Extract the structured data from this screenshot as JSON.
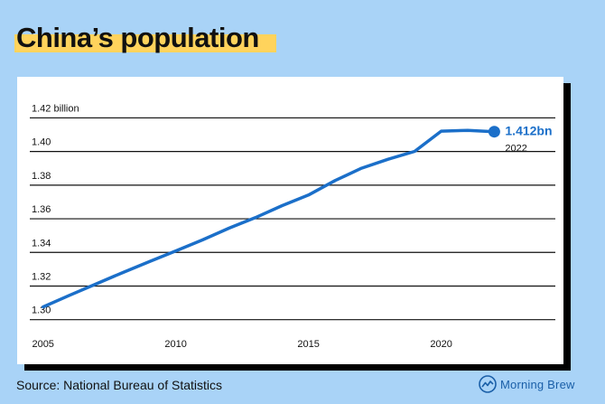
{
  "title": "China’s population",
  "source": "Source: National Bureau of Statistics",
  "brand": "Morning Brew",
  "colors": {
    "background": "#a9d3f7",
    "line": "#1b6fc9",
    "highlight": "#ffd35c"
  },
  "chart_data": {
    "type": "line",
    "x_ticks": [
      "2005",
      "2010",
      "2015",
      "2020"
    ],
    "y_ticks": [
      "1.42 billion",
      "1.40",
      "1.38",
      "1.36",
      "1.34",
      "1.32",
      "1.30"
    ],
    "xlim": [
      2004.5,
      2024.3
    ],
    "ylim": [
      1.295,
      1.424
    ],
    "grid": true,
    "series": [
      {
        "x": [
          2005,
          2006,
          2007,
          2008,
          2009,
          2010,
          2011,
          2012,
          2013,
          2014,
          2015,
          2016,
          2017,
          2018,
          2019,
          2020,
          2021,
          2022
        ],
        "values": [
          1.3076,
          1.3145,
          1.3213,
          1.328,
          1.3345,
          1.3409,
          1.3474,
          1.3544,
          1.3607,
          1.3678,
          1.3741,
          1.3827,
          1.3901,
          1.3954,
          1.4001,
          1.4121,
          1.4126,
          1.4118
        ]
      }
    ],
    "annotation": {
      "value": "1.412bn",
      "year": "2022"
    }
  }
}
